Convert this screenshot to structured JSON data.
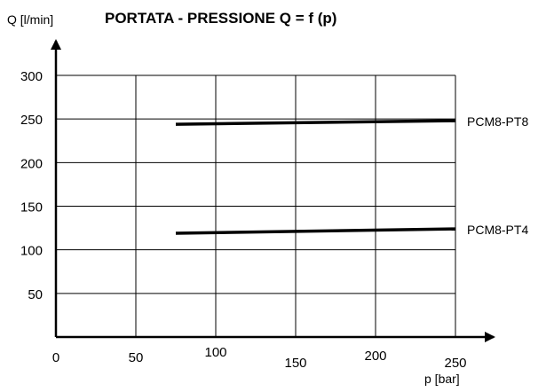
{
  "chart_data": {
    "type": "line",
    "title": "PORTATA - PRESSIONE Q = f (p)",
    "xlabel": "p [bar]",
    "ylabel": "Q [l/min]",
    "xlim": [
      0,
      250
    ],
    "ylim": [
      0,
      300
    ],
    "x_ticks": [
      0,
      50,
      100,
      150,
      200,
      250
    ],
    "y_ticks": [
      50,
      100,
      150,
      200,
      250,
      300
    ],
    "grid": true,
    "series": [
      {
        "name": "PCM8-PT8",
        "x": [
          75,
          250
        ],
        "y": [
          244,
          248
        ]
      },
      {
        "name": "PCM8-PT4",
        "x": [
          75,
          250
        ],
        "y": [
          119,
          124
        ]
      }
    ]
  }
}
